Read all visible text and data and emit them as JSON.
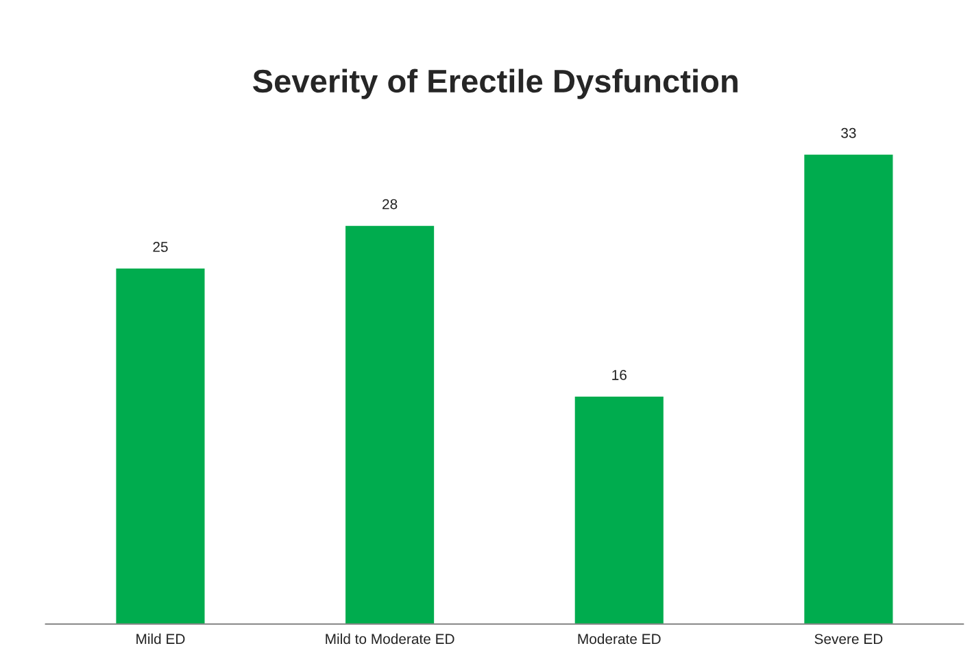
{
  "chart_data": {
    "type": "bar",
    "title": "Severity of Erectile Dysfunction",
    "categories": [
      "Mild ED",
      "Mild to Moderate ED",
      "Moderate ED",
      "Severe ED"
    ],
    "values": [
      25,
      28,
      16,
      33
    ],
    "color": "#00ac4e",
    "data_labels": true
  }
}
